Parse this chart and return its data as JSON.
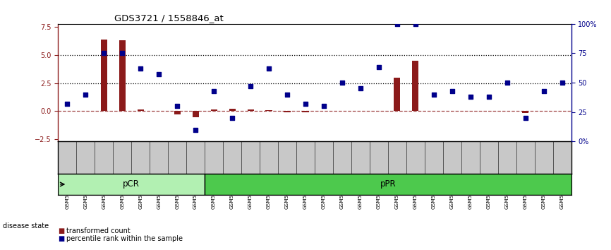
{
  "title": "GDS3721 / 1558846_at",
  "samples": [
    "GSM559062",
    "GSM559063",
    "GSM559064",
    "GSM559065",
    "GSM559066",
    "GSM559067",
    "GSM559068",
    "GSM559069",
    "GSM559042",
    "GSM559043",
    "GSM559044",
    "GSM559045",
    "GSM559046",
    "GSM559047",
    "GSM559048",
    "GSM559049",
    "GSM559050",
    "GSM559051",
    "GSM559052",
    "GSM559053",
    "GSM559054",
    "GSM559055",
    "GSM559056",
    "GSM559057",
    "GSM559058",
    "GSM559059",
    "GSM559060",
    "GSM559061"
  ],
  "transformed_count": [
    0.05,
    0.05,
    6.4,
    6.3,
    0.15,
    0.05,
    -0.3,
    -0.55,
    0.15,
    0.25,
    0.15,
    0.12,
    -0.1,
    -0.12,
    0.05,
    0.05,
    0.05,
    0.05,
    3.0,
    4.5,
    0.05,
    0.05,
    0.05,
    0.05,
    0.05,
    -0.18,
    0.05,
    0.05
  ],
  "percentile_rank": [
    32,
    40,
    75,
    75,
    62,
    57,
    30,
    10,
    43,
    20,
    47,
    62,
    40,
    32,
    30,
    50,
    45,
    63,
    100,
    100,
    40,
    43,
    38,
    38,
    50,
    20,
    43,
    50
  ],
  "pCR_count": 8,
  "pPR_count": 20,
  "left_yticks": [
    -2.5,
    0.0,
    2.5,
    5.0,
    7.5
  ],
  "right_yticks": [
    0,
    25,
    50,
    75,
    100
  ],
  "right_yticklabels": [
    "0%",
    "25",
    "50",
    "75",
    "100%"
  ],
  "ylim_left": [
    -2.7,
    7.8
  ],
  "ylim_right": [
    0,
    100
  ],
  "hlines": [
    2.5,
    5.0
  ],
  "bar_color": "#8B1A1A",
  "dot_color": "#00008B",
  "pCR_color": "#b2f0b2",
  "pPR_color": "#4dc94d",
  "label_bg": "#C8C8C8",
  "legend_red": "transformed count",
  "legend_blue": "percentile rank within the sample",
  "disease_label": "disease state"
}
